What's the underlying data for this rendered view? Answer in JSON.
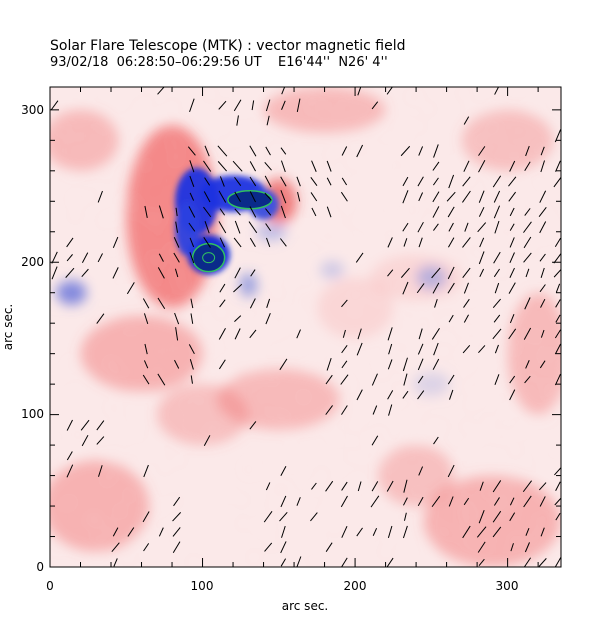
{
  "header": {
    "title": "Solar Flare Telescope (MTK) : vector magnetic field",
    "subtitle": "93/02/18  06:28:50–06:29:56 UT    E16'44''  N26' 4''"
  },
  "chart_data": {
    "type": "heatmap",
    "xlabel": "arc sec.",
    "ylabel": "arc sec.",
    "xlim": [
      0,
      335
    ],
    "ylim": [
      0,
      315
    ],
    "x_ticks": [
      "0",
      "100",
      "200",
      "300"
    ],
    "y_ticks": [
      "0",
      "100",
      "200",
      "300"
    ],
    "colors": {
      "positive": "#e83030",
      "negative": "#1030e0",
      "contour": "#30c060",
      "vector": "#000000"
    }
  }
}
